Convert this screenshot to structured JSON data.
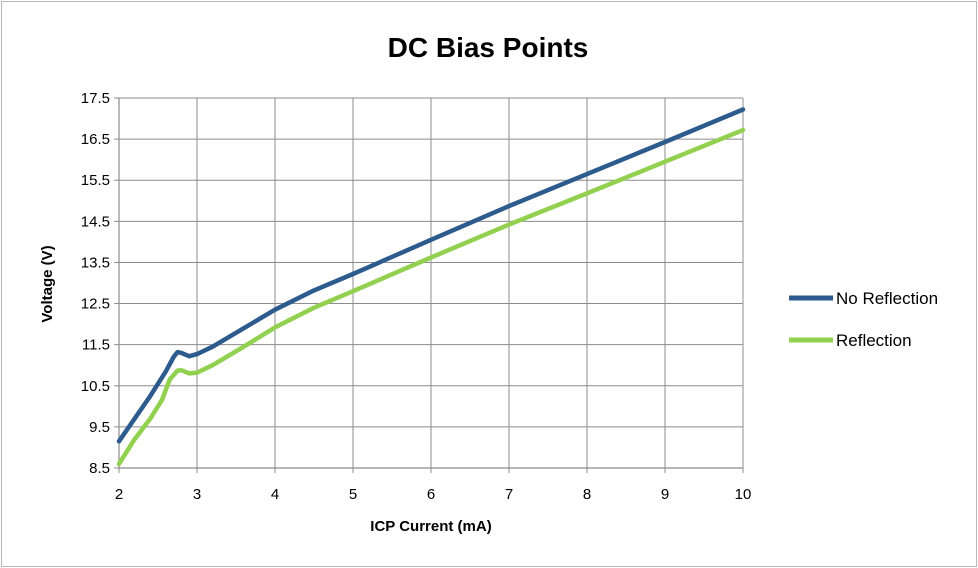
{
  "chart_data": {
    "type": "line",
    "title": "DC Bias Points",
    "xlabel": "ICP Current (mA)",
    "ylabel": "Voltage (V)",
    "xlim": [
      2,
      10
    ],
    "ylim": [
      8.5,
      17.5
    ],
    "x_ticks": [
      "2",
      "3",
      "4",
      "5",
      "6",
      "7",
      "8",
      "9",
      "10"
    ],
    "y_ticks": [
      "8.5",
      "9.5",
      "10.5",
      "11.5",
      "12.5",
      "13.5",
      "14.5",
      "15.5",
      "16.5",
      "17.5"
    ],
    "grid": true,
    "legend_position": "right",
    "series": [
      {
        "name": "No Reflection",
        "color": "#2e5b8e",
        "x": [
          2.0,
          2.2,
          2.4,
          2.6,
          2.7,
          2.75,
          2.8,
          2.9,
          3.0,
          3.2,
          3.6,
          4.0,
          4.5,
          5.0,
          6.0,
          7.0,
          8.0,
          9.0,
          10.0
        ],
        "y": [
          9.15,
          9.7,
          10.25,
          10.85,
          11.2,
          11.32,
          11.3,
          11.22,
          11.27,
          11.45,
          11.9,
          12.35,
          12.82,
          13.22,
          14.05,
          14.87,
          15.65,
          16.43,
          17.22
        ]
      },
      {
        "name": "Reflection",
        "color": "#92d050",
        "x": [
          2.0,
          2.2,
          2.4,
          2.55,
          2.65,
          2.75,
          2.8,
          2.9,
          3.0,
          3.2,
          3.6,
          4.0,
          4.5,
          5.0,
          6.0,
          7.0,
          8.0,
          9.0,
          10.0
        ],
        "y": [
          8.6,
          9.2,
          9.7,
          10.15,
          10.65,
          10.87,
          10.88,
          10.8,
          10.82,
          11.0,
          11.45,
          11.92,
          12.4,
          12.8,
          13.62,
          14.42,
          15.18,
          15.95,
          16.72
        ]
      }
    ]
  }
}
